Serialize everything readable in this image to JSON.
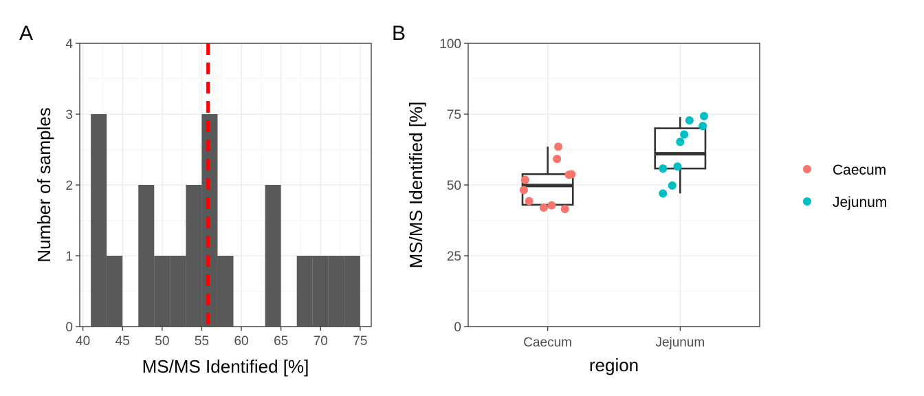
{
  "chart_data": [
    {
      "panel": "A",
      "type": "bar",
      "subtype": "histogram",
      "xlabel": "MS/MS Identified [%]",
      "ylabel": "Number of samples",
      "xlim": [
        39.6,
        76.4
      ],
      "ylim": [
        0,
        4
      ],
      "x_ticks": [
        40,
        45,
        50,
        55,
        60,
        65,
        70,
        75
      ],
      "y_ticks": [
        0,
        1,
        2,
        3,
        4
      ],
      "bins": [
        {
          "x0": 41,
          "x1": 43,
          "count": 3
        },
        {
          "x0": 43,
          "x1": 45,
          "count": 1
        },
        {
          "x0": 45,
          "x1": 47,
          "count": 0
        },
        {
          "x0": 47,
          "x1": 49,
          "count": 2
        },
        {
          "x0": 49,
          "x1": 51,
          "count": 1
        },
        {
          "x0": 51,
          "x1": 53,
          "count": 1
        },
        {
          "x0": 53,
          "x1": 55,
          "count": 2
        },
        {
          "x0": 55,
          "x1": 57,
          "count": 3
        },
        {
          "x0": 57,
          "x1": 59,
          "count": 1
        },
        {
          "x0": 59,
          "x1": 61,
          "count": 0
        },
        {
          "x0": 61,
          "x1": 63,
          "count": 0
        },
        {
          "x0": 63,
          "x1": 65,
          "count": 2
        },
        {
          "x0": 65,
          "x1": 67,
          "count": 0
        },
        {
          "x0": 67,
          "x1": 69,
          "count": 1
        },
        {
          "x0": 69,
          "x1": 71,
          "count": 1
        },
        {
          "x0": 71,
          "x1": 73,
          "count": 1
        },
        {
          "x0": 73,
          "x1": 75,
          "count": 1
        }
      ],
      "bar_color": "#595959",
      "reference_line": {
        "x": 55.8,
        "color": "#ff0000",
        "style": "dashed"
      },
      "grid": true
    },
    {
      "panel": "B",
      "type": "scatter",
      "subtype": "boxplot with jittered points",
      "xlabel": "region",
      "ylabel": "MS/MS Identified [%]",
      "categories": [
        "Caecum",
        "Jejunum"
      ],
      "ylim": [
        0,
        100
      ],
      "y_ticks": [
        0,
        25,
        50,
        75,
        100
      ],
      "boxes": [
        {
          "category": "Caecum",
          "whisker_low": 42,
          "q1": 43,
          "median": 49.8,
          "q3": 53.8,
          "whisker_high": 63.5
        },
        {
          "category": "Jejunum",
          "whisker_low": 47,
          "q1": 55.8,
          "median": 61,
          "q3": 70,
          "whisker_high": 74
        }
      ],
      "series": [
        {
          "name": "Caecum",
          "color": "#f8766d",
          "points": [
            {
              "jitter": 0.08,
              "y": 63.5
            },
            {
              "jitter": 0.07,
              "y": 59.2
            },
            {
              "jitter": 0.18,
              "y": 53.8
            },
            {
              "jitter": 0.16,
              "y": 53.6
            },
            {
              "jitter": -0.17,
              "y": 51.8
            },
            {
              "jitter": -0.18,
              "y": 48.2
            },
            {
              "jitter": -0.14,
              "y": 44.3
            },
            {
              "jitter": 0.03,
              "y": 42.8
            },
            {
              "jitter": -0.03,
              "y": 42
            },
            {
              "jitter": 0.13,
              "y": 41.5
            }
          ]
        },
        {
          "name": "Jejunum",
          "color": "#00bfc4",
          "points": [
            {
              "jitter": 0.18,
              "y": 74.3
            },
            {
              "jitter": 0.07,
              "y": 72.8
            },
            {
              "jitter": 0.17,
              "y": 70.8
            },
            {
              "jitter": 0.03,
              "y": 67.8
            },
            {
              "jitter": 0,
              "y": 65.2
            },
            {
              "jitter": -0.13,
              "y": 55.8
            },
            {
              "jitter": -0.02,
              "y": 56.5
            },
            {
              "jitter": -0.06,
              "y": 49.8
            },
            {
              "jitter": -0.13,
              "y": 47
            }
          ]
        }
      ],
      "legend": {
        "placement": "right",
        "entries": [
          "Caecum",
          "Jejunum"
        ]
      },
      "grid": true
    }
  ],
  "panel_tags": {
    "a": "A",
    "b": "B"
  }
}
